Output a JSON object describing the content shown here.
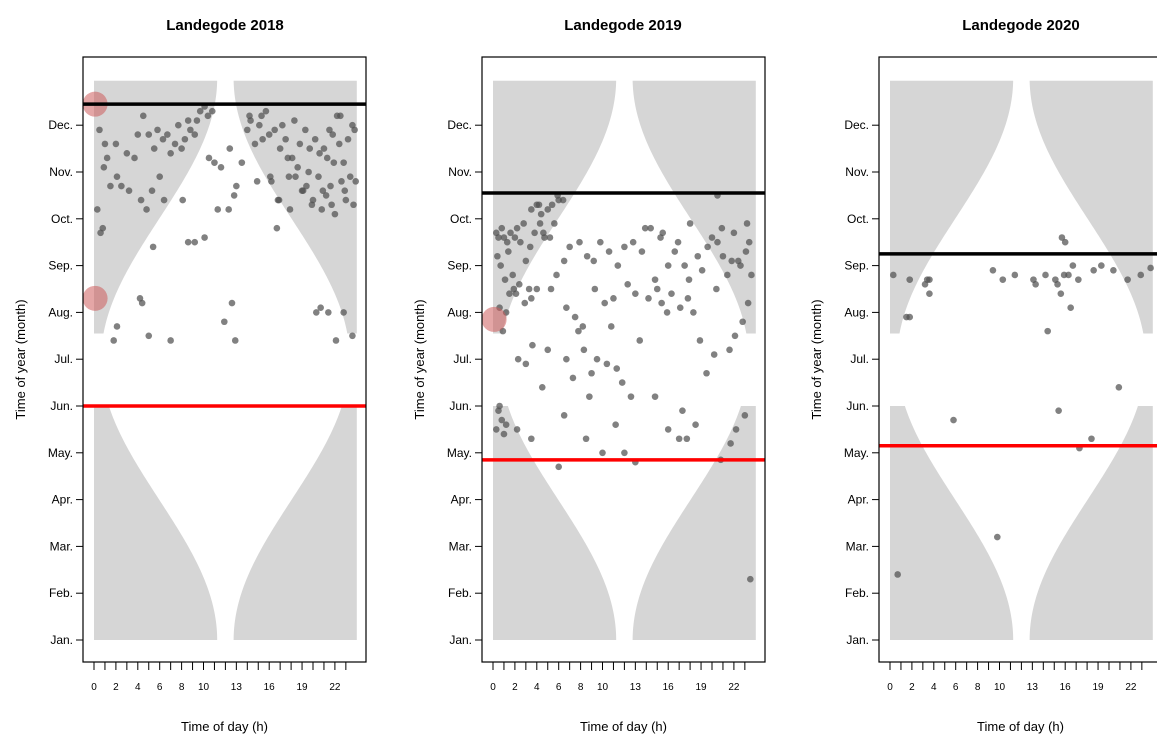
{
  "chart_data": [
    {
      "type": "scatter",
      "title": "Landegode 2018",
      "xlabel": "Time of day (h)",
      "ylabel": "Time of year (month)",
      "x_tick_labels": [
        "0",
        "2",
        "4",
        "6",
        "8",
        "10",
        "13",
        "16",
        "19",
        "22"
      ],
      "x_tick_values": [
        0,
        2,
        4,
        6,
        8,
        10,
        13,
        16,
        19,
        22
      ],
      "y_tick_labels": [
        "Jan.",
        "Feb.",
        "Mar.",
        "Apr.",
        "May.",
        "Jun.",
        "Jul.",
        "Aug.",
        "Sep.",
        "Oct.",
        "Nov.",
        "Dec."
      ],
      "xlim": [
        0,
        24
      ],
      "black_line_month": 12.45,
      "red_line_month": 6.0,
      "red_circles": [
        {
          "hour": 0.1,
          "month": 12.45
        },
        {
          "hour": 0.1,
          "month": 8.3
        }
      ],
      "points": [
        [
          0.3,
          10.2
        ],
        [
          0.6,
          9.7
        ],
        [
          0.8,
          9.8
        ],
        [
          0.5,
          11.9
        ],
        [
          1,
          11.6
        ],
        [
          0.9,
          11.1
        ],
        [
          1.2,
          11.3
        ],
        [
          1.5,
          10.7
        ],
        [
          2,
          11.6
        ],
        [
          2.1,
          10.9
        ],
        [
          2.5,
          10.7
        ],
        [
          3,
          11.4
        ],
        [
          3.2,
          10.6
        ],
        [
          3.7,
          11.3
        ],
        [
          4,
          11.8
        ],
        [
          4.5,
          12.2
        ],
        [
          4.3,
          10.4
        ],
        [
          4.8,
          10.2
        ],
        [
          5,
          11.8
        ],
        [
          5.3,
          10.6
        ],
        [
          5.5,
          11.5
        ],
        [
          5.8,
          11.9
        ],
        [
          6,
          10.9
        ],
        [
          6.3,
          11.7
        ],
        [
          6.7,
          11.8
        ],
        [
          6.4,
          10.4
        ],
        [
          7,
          11.4
        ],
        [
          7.4,
          11.6
        ],
        [
          7.7,
          12.0
        ],
        [
          8,
          11.5
        ],
        [
          8.3,
          11.7
        ],
        [
          8.6,
          12.1
        ],
        [
          8.8,
          11.9
        ],
        [
          8.1,
          10.4
        ],
        [
          9.2,
          11.8
        ],
        [
          9.4,
          12.1
        ],
        [
          9.7,
          12.3
        ],
        [
          10.1,
          12.4
        ],
        [
          10.4,
          12.2
        ],
        [
          10.8,
          12.3
        ],
        [
          10.5,
          11.3
        ],
        [
          11,
          11.2
        ],
        [
          11.6,
          11.1
        ],
        [
          11.3,
          10.2
        ],
        [
          12.3,
          10.2
        ],
        [
          12.8,
          10.5
        ],
        [
          13.5,
          11.2
        ],
        [
          14,
          11.9
        ],
        [
          14.3,
          12.1
        ],
        [
          14.7,
          11.6
        ],
        [
          15.1,
          12.0
        ],
        [
          15.4,
          11.7
        ],
        [
          15.7,
          12.3
        ],
        [
          16,
          11.8
        ],
        [
          16.2,
          10.8
        ],
        [
          16.5,
          11.9
        ],
        [
          16.8,
          10.4
        ],
        [
          17.2,
          12.0
        ],
        [
          17.5,
          11.7
        ],
        [
          17.9,
          10.2
        ],
        [
          18.1,
          11.3
        ],
        [
          18.4,
          10.9
        ],
        [
          18.8,
          11.6
        ],
        [
          19.1,
          10.6
        ],
        [
          19.3,
          11.9
        ],
        [
          19.6,
          11.0
        ],
        [
          19.9,
          10.3
        ],
        [
          20.2,
          11.7
        ],
        [
          20.5,
          10.9
        ],
        [
          20.8,
          10.2
        ],
        [
          21.0,
          11.5
        ],
        [
          21.2,
          10.5
        ],
        [
          21.5,
          11.9
        ],
        [
          21.7,
          10.3
        ],
        [
          21.9,
          11.2
        ],
        [
          22.2,
          12.2
        ],
        [
          22.4,
          11.6
        ],
        [
          22.6,
          10.8
        ],
        [
          22.8,
          11.2
        ],
        [
          23.0,
          10.4
        ],
        [
          23.2,
          11.7
        ],
        [
          23.4,
          10.9
        ],
        [
          23.6,
          12.0
        ],
        [
          23.7,
          10.3
        ],
        [
          23.9,
          10.8
        ],
        [
          20.9,
          10.6
        ],
        [
          19.7,
          11.5
        ],
        [
          18.6,
          11.1
        ],
        [
          17.7,
          11.3
        ],
        [
          22.0,
          10.1
        ],
        [
          21.3,
          11.3
        ],
        [
          20.0,
          10.4
        ],
        [
          23.8,
          11.9
        ],
        [
          22.9,
          10.6
        ],
        [
          22.5,
          12.2
        ],
        [
          21.8,
          11.8
        ],
        [
          20.6,
          11.4
        ],
        [
          19.4,
          10.7
        ],
        [
          18.3,
          12.1
        ],
        [
          17.0,
          11.5
        ],
        [
          16.1,
          10.9
        ],
        [
          15.3,
          12.2
        ],
        [
          14.9,
          10.8
        ],
        [
          4.2,
          8.3
        ],
        [
          4.4,
          8.2
        ],
        [
          12.6,
          8.2
        ],
        [
          12.9,
          7.4
        ],
        [
          11.9,
          7.8
        ],
        [
          2.1,
          7.7
        ],
        [
          1.8,
          7.4
        ],
        [
          5.0,
          7.5
        ],
        [
          7.0,
          7.4
        ],
        [
          20.3,
          8.0
        ],
        [
          21.4,
          8.0
        ],
        [
          20.7,
          8.1
        ],
        [
          22.1,
          7.4
        ],
        [
          22.8,
          8.0
        ],
        [
          23.6,
          7.5
        ],
        [
          16.7,
          9.8
        ],
        [
          10.1,
          9.6
        ],
        [
          9.2,
          9.5
        ],
        [
          8.6,
          9.5
        ],
        [
          5.4,
          9.4
        ],
        [
          13.0,
          10.7
        ],
        [
          12.4,
          11.5
        ],
        [
          14.2,
          12.2
        ],
        [
          16.9,
          10.4
        ],
        [
          17.8,
          10.9
        ],
        [
          19.0,
          10.6
        ],
        [
          21.6,
          10.7
        ]
      ]
    },
    {
      "type": "scatter",
      "title": "Landegode 2019",
      "xlabel": "Time of day (h)",
      "ylabel": "Time of year (month)",
      "x_tick_labels": [
        "0",
        "2",
        "4",
        "6",
        "8",
        "10",
        "13",
        "16",
        "19",
        "22"
      ],
      "x_tick_values": [
        0,
        2,
        4,
        6,
        8,
        10,
        13,
        16,
        19,
        22
      ],
      "y_tick_labels": [
        "Jan.",
        "Feb.",
        "Mar.",
        "Apr.",
        "May.",
        "Jun.",
        "Jul.",
        "Aug.",
        "Sep.",
        "Oct.",
        "Nov.",
        "Dec."
      ],
      "xlim": [
        0,
        24
      ],
      "black_line_month": 10.55,
      "red_line_month": 4.85,
      "red_circles": [
        {
          "hour": 0.1,
          "month": 7.85
        }
      ],
      "points": [
        [
          0.3,
          9.7
        ],
        [
          0.5,
          9.6
        ],
        [
          0.8,
          9.8
        ],
        [
          1,
          9.6
        ],
        [
          1.3,
          9.5
        ],
        [
          1.6,
          9.7
        ],
        [
          2,
          9.6
        ],
        [
          2.2,
          9.8
        ],
        [
          2.5,
          9.5
        ],
        [
          2.8,
          9.9
        ],
        [
          0.4,
          9.2
        ],
        [
          0.7,
          9.0
        ],
        [
          1.1,
          8.7
        ],
        [
          1.4,
          9.3
        ],
        [
          1.8,
          8.8
        ],
        [
          2.1,
          8.4
        ],
        [
          2.4,
          8.6
        ],
        [
          2.9,
          8.2
        ],
        [
          3.3,
          8.5
        ],
        [
          3.5,
          8.3
        ],
        [
          4.0,
          8.5
        ],
        [
          0.6,
          8.1
        ],
        [
          0.9,
          7.6
        ],
        [
          1.2,
          8.0
        ],
        [
          1.5,
          8.4
        ],
        [
          1.9,
          8.5
        ],
        [
          3.0,
          9.1
        ],
        [
          3.4,
          9.4
        ],
        [
          3.8,
          9.7
        ],
        [
          4.3,
          9.9
        ],
        [
          4.7,
          9.6
        ],
        [
          5.2,
          9.6
        ],
        [
          5.6,
          9.9
        ],
        [
          3.5,
          10.2
        ],
        [
          4.0,
          10.3
        ],
        [
          4.4,
          10.1
        ],
        [
          5.0,
          10.2
        ],
        [
          5.4,
          10.3
        ],
        [
          6.0,
          10.4
        ],
        [
          6.4,
          10.4
        ],
        [
          0.5,
          5.9
        ],
        [
          0.8,
          5.7
        ],
        [
          1.2,
          5.6
        ],
        [
          0.3,
          5.5
        ],
        [
          1.0,
          5.4
        ],
        [
          2.2,
          5.5
        ],
        [
          0.6,
          6.0
        ],
        [
          6.0,
          4.7
        ],
        [
          10.0,
          5.0
        ],
        [
          3.5,
          5.3
        ],
        [
          6.5,
          5.8
        ],
        [
          8.5,
          5.3
        ],
        [
          11.2,
          5.6
        ],
        [
          12.0,
          5.0
        ],
        [
          13.0,
          4.8
        ],
        [
          14.8,
          6.2
        ],
        [
          16.0,
          5.5
        ],
        [
          17.0,
          5.3
        ],
        [
          17.3,
          5.9
        ],
        [
          17.7,
          5.3
        ],
        [
          18.5,
          5.6
        ],
        [
          20.8,
          4.85
        ],
        [
          21.7,
          5.2
        ],
        [
          22.2,
          5.5
        ],
        [
          23.0,
          5.8
        ],
        [
          2.3,
          7.0
        ],
        [
          3.0,
          6.9
        ],
        [
          3.6,
          7.3
        ],
        [
          4.5,
          6.4
        ],
        [
          5.0,
          7.2
        ],
        [
          6.7,
          7.0
        ],
        [
          7.3,
          6.6
        ],
        [
          7.8,
          7.6
        ],
        [
          8.3,
          7.2
        ],
        [
          8.8,
          6.2
        ],
        [
          9.0,
          6.7
        ],
        [
          9.5,
          7.0
        ],
        [
          10.4,
          6.9
        ],
        [
          10.8,
          7.7
        ],
        [
          11.3,
          6.8
        ],
        [
          11.8,
          6.5
        ],
        [
          12.6,
          6.2
        ],
        [
          13.4,
          7.4
        ],
        [
          14.2,
          8.3
        ],
        [
          15.0,
          8.5
        ],
        [
          15.4,
          8.2
        ],
        [
          15.9,
          8.0
        ],
        [
          16.3,
          8.4
        ],
        [
          17.1,
          8.1
        ],
        [
          17.8,
          8.3
        ],
        [
          18.3,
          8.0
        ],
        [
          18.9,
          7.4
        ],
        [
          19.5,
          6.7
        ],
        [
          20.2,
          7.1
        ],
        [
          21.6,
          7.2
        ],
        [
          22.1,
          7.5
        ],
        [
          22.8,
          7.8
        ],
        [
          23.3,
          8.2
        ],
        [
          23.6,
          8.8
        ],
        [
          23.4,
          9.5
        ],
        [
          22.6,
          9.0
        ],
        [
          21.8,
          9.1
        ],
        [
          21.0,
          9.2
        ],
        [
          20.5,
          9.5
        ],
        [
          20.0,
          9.6
        ],
        [
          19.6,
          9.4
        ],
        [
          18.7,
          9.2
        ],
        [
          17.5,
          9.0
        ],
        [
          16.6,
          9.3
        ],
        [
          15.3,
          9.6
        ],
        [
          14.4,
          9.8
        ],
        [
          13.6,
          9.3
        ],
        [
          12.8,
          9.5
        ],
        [
          12.0,
          9.4
        ],
        [
          11.4,
          9.0
        ],
        [
          10.6,
          9.3
        ],
        [
          9.8,
          9.5
        ],
        [
          9.2,
          9.1
        ],
        [
          8.6,
          9.2
        ],
        [
          7.9,
          9.5
        ],
        [
          7.0,
          9.4
        ],
        [
          6.5,
          9.1
        ],
        [
          5.8,
          8.8
        ],
        [
          5.3,
          8.5
        ],
        [
          6.7,
          8.1
        ],
        [
          7.5,
          7.9
        ],
        [
          8.2,
          7.7
        ],
        [
          9.3,
          8.5
        ],
        [
          10.2,
          8.2
        ],
        [
          11.0,
          8.3
        ],
        [
          12.3,
          8.6
        ],
        [
          13.0,
          8.4
        ],
        [
          14.8,
          8.7
        ],
        [
          16.0,
          9.0
        ],
        [
          17.9,
          8.7
        ],
        [
          19.1,
          8.9
        ],
        [
          20.4,
          8.5
        ],
        [
          21.4,
          8.8
        ],
        [
          22.4,
          9.1
        ],
        [
          23.1,
          9.3
        ],
        [
          23.5,
          2.3
        ],
        [
          20.9,
          9.8
        ],
        [
          22.0,
          9.7
        ],
        [
          23.2,
          9.9
        ],
        [
          18.0,
          9.9
        ],
        [
          16.9,
          9.5
        ],
        [
          15.5,
          9.7
        ],
        [
          13.9,
          9.8
        ],
        [
          20.5,
          10.5
        ],
        [
          5.9,
          10.5
        ],
        [
          4.6,
          9.7
        ],
        [
          4.2,
          10.3
        ]
      ]
    },
    {
      "type": "scatter",
      "title": "Landegode 2020",
      "xlabel": "Time of day (h)",
      "ylabel": "Time of year (month)",
      "x_tick_labels": [
        "0",
        "2",
        "4",
        "6",
        "8",
        "10",
        "13",
        "16",
        "19",
        "22"
      ],
      "x_tick_values": [
        0,
        2,
        4,
        6,
        8,
        10,
        13,
        16,
        19,
        22
      ],
      "y_tick_labels": [
        "Jan.",
        "Feb.",
        "Mar.",
        "Apr.",
        "May.",
        "Jun.",
        "Jul.",
        "Aug.",
        "Sep.",
        "Oct.",
        "Nov.",
        "Dec."
      ],
      "xlim": [
        0,
        24
      ],
      "black_line_month": 9.25,
      "red_line_month": 5.15,
      "red_circles": [],
      "points": [
        [
          0.3,
          8.8
        ],
        [
          1.5,
          7.9
        ],
        [
          1.8,
          7.9
        ],
        [
          1.8,
          8.7
        ],
        [
          3.2,
          8.6
        ],
        [
          3.6,
          8.7
        ],
        [
          3.6,
          8.4
        ],
        [
          3.4,
          8.7
        ],
        [
          0.7,
          2.4
        ],
        [
          5.8,
          5.7
        ],
        [
          9.4,
          8.9
        ],
        [
          10.3,
          8.7
        ],
        [
          11.4,
          8.8
        ],
        [
          9.8,
          3.2
        ],
        [
          13.1,
          8.7
        ],
        [
          13.3,
          8.6
        ],
        [
          14.2,
          8.8
        ],
        [
          14.4,
          7.6
        ],
        [
          15.1,
          8.7
        ],
        [
          15.3,
          8.6
        ],
        [
          15.6,
          8.4
        ],
        [
          15.9,
          8.8
        ],
        [
          16.3,
          8.8
        ],
        [
          16.5,
          8.1
        ],
        [
          16.0,
          9.5
        ],
        [
          15.7,
          9.6
        ],
        [
          17.2,
          8.7
        ],
        [
          18.6,
          8.9
        ],
        [
          19.3,
          9.0
        ],
        [
          20.4,
          8.9
        ],
        [
          21.7,
          8.7
        ],
        [
          22.9,
          8.8
        ],
        [
          23.8,
          8.95
        ],
        [
          20.9,
          6.4
        ],
        [
          15.4,
          5.9
        ],
        [
          17.3,
          5.1
        ],
        [
          18.4,
          5.3
        ],
        [
          16.7,
          9.0
        ]
      ]
    }
  ]
}
